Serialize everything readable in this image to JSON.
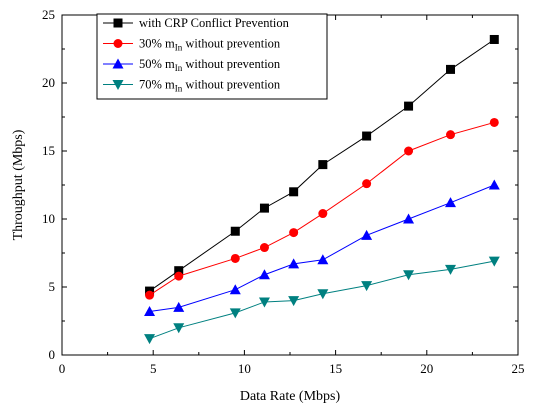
{
  "chart_data": {
    "type": "line",
    "title": "",
    "xlabel": "Data Rate (Mbps)",
    "ylabel": "Throughput (Mbps)",
    "xlim": [
      0,
      25
    ],
    "ylim": [
      0,
      25
    ],
    "xticks": [
      0,
      5,
      10,
      15,
      20,
      25
    ],
    "yticks": [
      0,
      5,
      10,
      15,
      20,
      25
    ],
    "grid": false,
    "legend_position": "top-left",
    "x": [
      4.8,
      6.4,
      9.5,
      11.1,
      12.7,
      14.3,
      16.7,
      19.0,
      21.3,
      23.7
    ],
    "series": [
      {
        "name": "with CRP Conflict Prevention",
        "marker": "square",
        "color": "#000000",
        "values": [
          4.7,
          6.2,
          9.1,
          10.8,
          12.0,
          14.0,
          16.1,
          18.3,
          21.0,
          23.2
        ]
      },
      {
        "name": "30% m",
        "name_sub": "In",
        "name_suffix": " without prevention",
        "marker": "circle",
        "color": "#ff0000",
        "values": [
          4.4,
          5.8,
          7.1,
          7.9,
          9.0,
          10.4,
          12.6,
          15.0,
          16.2,
          17.1
        ]
      },
      {
        "name": "50% m",
        "name_sub": "In",
        "name_suffix": " without prevention",
        "marker": "triangle-up",
        "color": "#0000ff",
        "values": [
          3.2,
          3.5,
          4.8,
          5.9,
          6.7,
          7.0,
          8.8,
          10.0,
          11.2,
          12.5
        ]
      },
      {
        "name": "70% m",
        "name_sub": "In",
        "name_suffix": " without prevention",
        "marker": "triangle-down",
        "color": "#008080",
        "values": [
          1.2,
          2.0,
          3.1,
          3.9,
          4.0,
          4.5,
          5.1,
          5.9,
          6.3,
          6.9
        ]
      }
    ]
  }
}
